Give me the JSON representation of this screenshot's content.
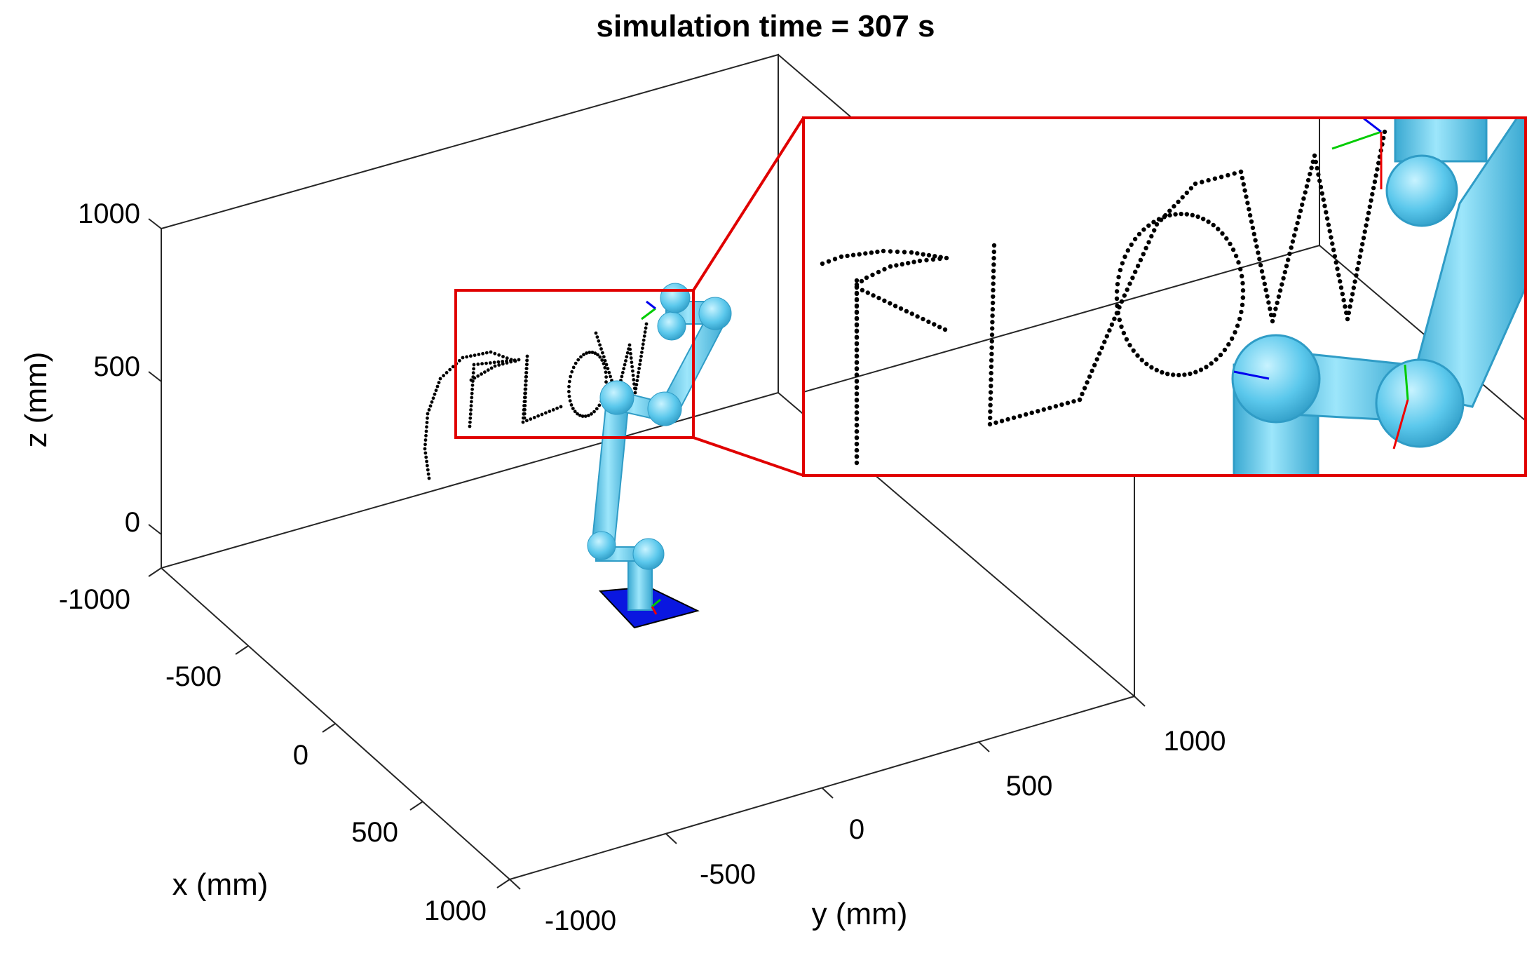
{
  "chart_data": {
    "type": "3d-scatter",
    "title": "simulation time = 307 s",
    "xlabel": "x (mm)",
    "ylabel": "y (mm)",
    "zlabel": "z (mm)",
    "xlim": [
      -1000,
      1000
    ],
    "ylim": [
      -1000,
      1000
    ],
    "zlim": [
      -100,
      1000
    ],
    "x_ticks": [
      "-1000",
      "-500",
      "0",
      "500",
      "1000"
    ],
    "y_ticks": [
      "-1000",
      "-500",
      "0",
      "500",
      "1000"
    ],
    "z_ticks": [
      "1000",
      "500",
      "0"
    ],
    "grid": false,
    "series": [
      {
        "type": "trajectory-points",
        "color": "#000000",
        "written_text": "FLOW"
      },
      {
        "type": "robot-arm",
        "link_color": "#5bc8ec",
        "base_color": "#0a17e0"
      }
    ],
    "inset": {
      "type": "zoom",
      "border_color": "#e00000"
    }
  }
}
